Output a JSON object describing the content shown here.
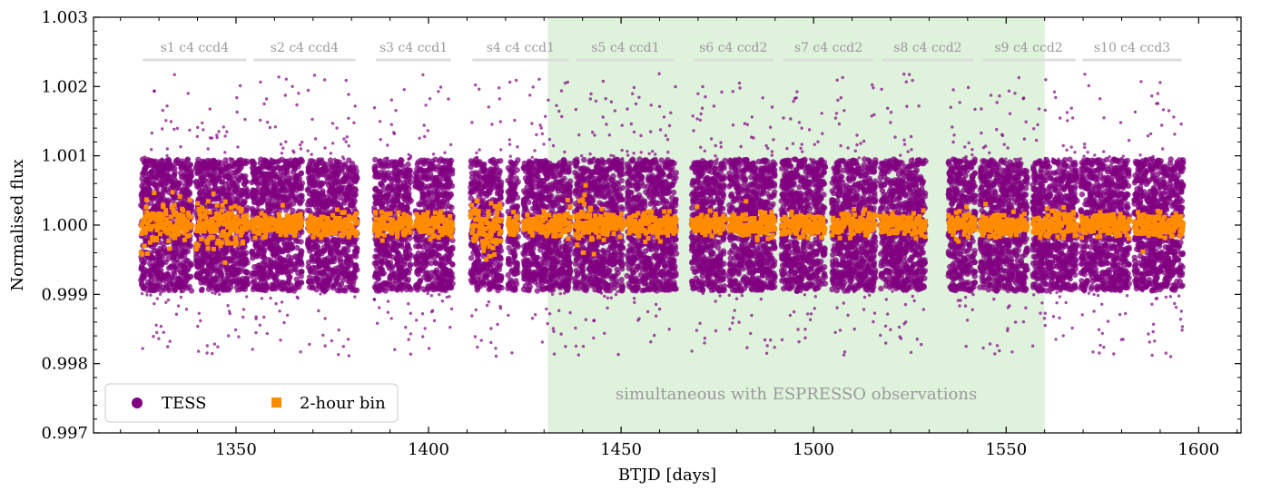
{
  "chart_data": {
    "type": "scatter",
    "xlabel": "BTJD [days]",
    "ylabel": "Normalised flux",
    "xlim": [
      1313,
      1611
    ],
    "ylim": [
      0.997,
      1.003
    ],
    "xticks": [
      "1350",
      "1400",
      "1450",
      "1500",
      "1550",
      "1600"
    ],
    "xtick_values": [
      1350,
      1400,
      1450,
      1500,
      1550,
      1600
    ],
    "yticks": [
      "0.997",
      "0.998",
      "0.999",
      "1.000",
      "1.001",
      "1.002",
      "1.003"
    ],
    "ytick_values": [
      0.997,
      0.998,
      0.999,
      1.0,
      1.001,
      1.002,
      1.003
    ],
    "grid": false,
    "legend_position": "bottom-left",
    "series": [
      {
        "name": "TESS",
        "color": "#800080",
        "marker": "circle",
        "center": 1.0,
        "core_halfwidth": 0.00095,
        "outlier_range": [
          0.9981,
          1.0022
        ]
      },
      {
        "name": "2-hour bin",
        "color": "#ff8c00",
        "marker": "square",
        "center": 1.0,
        "scatter": 8e-05
      }
    ],
    "sectors": [
      {
        "label": "s1 c4 ccd4",
        "start": 1325.3,
        "end": 1353.2,
        "segments": [
          [
            1325.3,
            1338.5
          ],
          [
            1339.6,
            1353.2
          ]
        ]
      },
      {
        "label": "s2 c4 ccd4",
        "start": 1354.1,
        "end": 1381.5,
        "segments": [
          [
            1354.1,
            1367.2
          ],
          [
            1368.6,
            1381.5
          ]
        ]
      },
      {
        "label": "s3 c4 ccd1",
        "start": 1385.9,
        "end": 1406.3,
        "segments": [
          [
            1385.9,
            1395.5
          ],
          [
            1396.6,
            1406.3
          ]
        ]
      },
      {
        "label": "s4 c4 ccd1",
        "start": 1410.9,
        "end": 1436.9,
        "segments": [
          [
            1410.9,
            1419.0
          ],
          [
            1420.6,
            1423.3
          ],
          [
            1424.6,
            1436.9
          ]
        ]
      },
      {
        "label": "s5 c4 ccd1",
        "start": 1437.9,
        "end": 1464.4,
        "segments": [
          [
            1437.9,
            1450.5
          ],
          [
            1451.5,
            1464.4
          ]
        ]
      },
      {
        "label": "s6 c4 ccd2",
        "start": 1468.3,
        "end": 1490.0,
        "segments": [
          [
            1468.3,
            1477.0
          ],
          [
            1478.1,
            1490.0
          ]
        ]
      },
      {
        "label": "s7 c4 ccd2",
        "start": 1491.6,
        "end": 1516.1,
        "segments": [
          [
            1491.6,
            1503.0
          ],
          [
            1504.7,
            1516.1
          ]
        ]
      },
      {
        "label": "s8 c4 ccd2",
        "start": 1517.3,
        "end": 1542.0,
        "segments": [
          [
            1517.3,
            1529.1
          ],
          [
            1535.0,
            1542.0
          ]
        ]
      },
      {
        "label": "s9 c4 ccd2",
        "start": 1543.2,
        "end": 1568.5,
        "segments": [
          [
            1543.2,
            1555.5
          ],
          [
            1556.9,
            1568.5
          ]
        ]
      },
      {
        "label": "s10 c4 ccd3",
        "start": 1569.4,
        "end": 1596.0,
        "segments": [
          [
            1569.4,
            1582.0
          ],
          [
            1583.2,
            1596.0
          ]
        ]
      }
    ],
    "shaded_region": {
      "x": [
        1431,
        1560
      ],
      "label": "simultaneous with ESPRESSO observations",
      "color": "#dff2dc",
      "text_color": "#6cc86c"
    }
  }
}
